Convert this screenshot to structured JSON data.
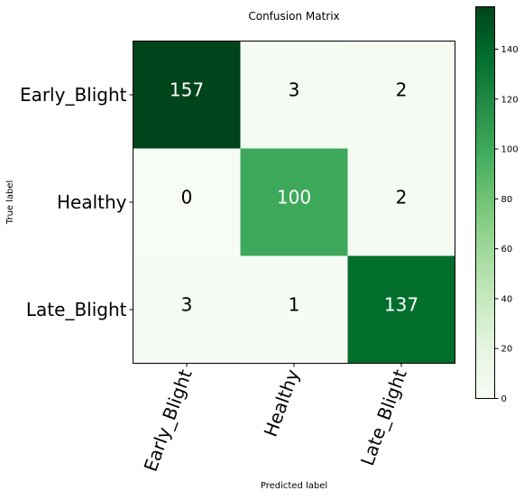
{
  "chart_data": {
    "type": "heatmap",
    "title": "Confusion Matrix",
    "xlabel": "Predicted label",
    "ylabel": "True label",
    "x_categories": [
      "Early_Blight",
      "Healthy",
      "Late_Blight"
    ],
    "y_categories": [
      "Early_Blight",
      "Healthy",
      "Late_Blight"
    ],
    "values": [
      [
        157,
        3,
        2
      ],
      [
        0,
        100,
        2
      ],
      [
        3,
        1,
        137
      ]
    ],
    "colorscale": "Greens",
    "vmin": 0,
    "vmax": 157,
    "colorbar_ticks": [
      0,
      20,
      40,
      60,
      80,
      100,
      120,
      140
    ],
    "text_colors": {
      "dark_cell": "#ffffff",
      "light_cell": "#000000"
    }
  }
}
